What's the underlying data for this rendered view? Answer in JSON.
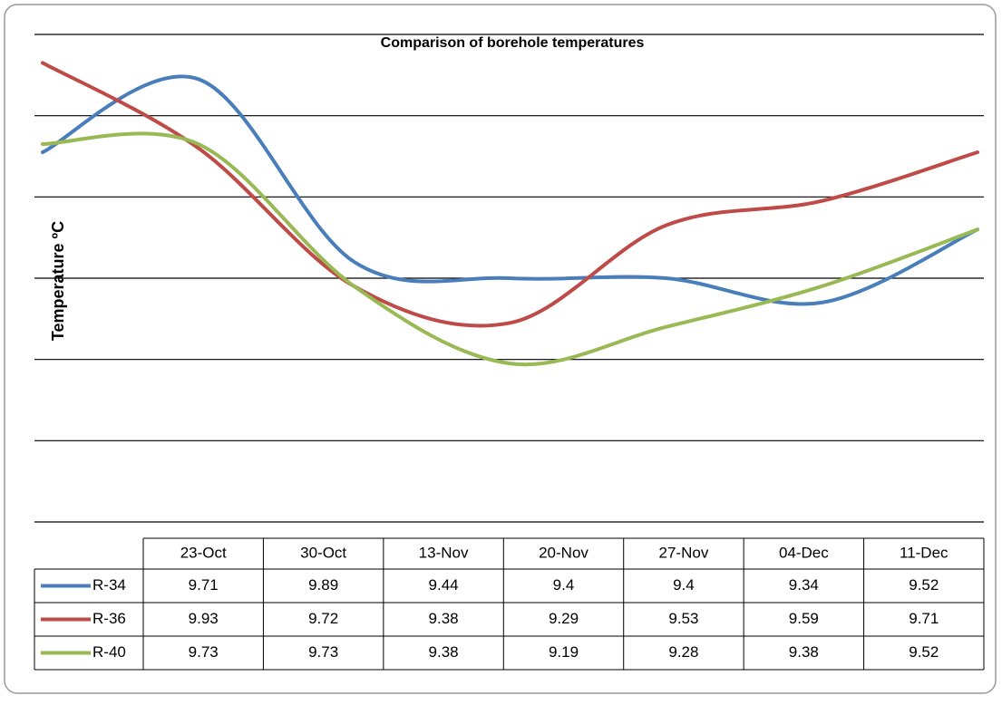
{
  "chart_data": {
    "type": "line",
    "title": "Comparison of borehole temperatures",
    "y_label": "Temperature ºC",
    "categories": [
      "23-Oct",
      "30-Oct",
      "13-Nov",
      "20-Nov",
      "27-Nov",
      "04-Dec",
      "11-Dec"
    ],
    "series": [
      {
        "name": "R-34",
        "color": "#4a7ebb",
        "values": [
          9.71,
          9.89,
          9.44,
          9.4,
          9.4,
          9.34,
          9.52
        ]
      },
      {
        "name": "R-36",
        "color": "#be4b48",
        "values": [
          9.93,
          9.72,
          9.38,
          9.29,
          9.53,
          9.59,
          9.71
        ]
      },
      {
        "name": "R-40",
        "color": "#98b954",
        "values": [
          9.73,
          9.73,
          9.38,
          9.19,
          9.28,
          9.38,
          9.52
        ]
      }
    ],
    "ylim": [
      8.8,
      10.0
    ],
    "yticks": [
      8.8,
      9.0,
      9.2,
      9.4,
      9.6,
      9.8,
      10.0
    ],
    "grid": true,
    "smooth": true
  }
}
